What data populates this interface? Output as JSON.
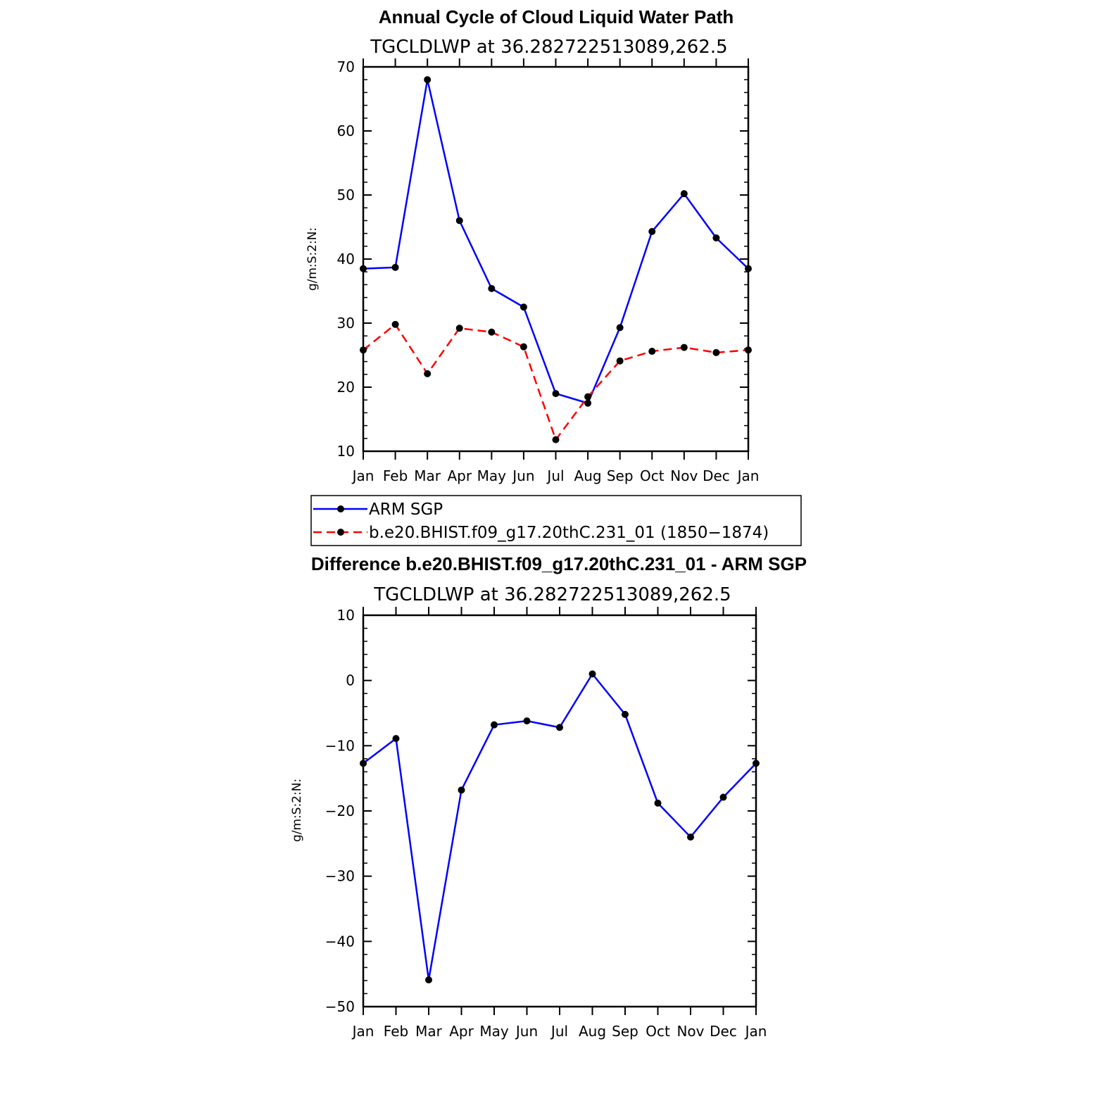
{
  "chart_data": [
    {
      "type": "line",
      "title": "Annual Cycle of Cloud Liquid Water Path",
      "subtitle": "TGCLDLWP  at  36.282722513089,262.5",
      "ylabel": "g/m:S:2:N:",
      "xlabel": "",
      "ylim": [
        10,
        70
      ],
      "yticks": [
        10,
        20,
        30,
        40,
        50,
        60,
        70
      ],
      "categories": [
        "Jan",
        "Feb",
        "Mar",
        "Apr",
        "May",
        "Jun",
        "Jul",
        "Aug",
        "Sep",
        "Oct",
        "Nov",
        "Dec",
        "Jan"
      ],
      "series": [
        {
          "name": "ARM  SGP",
          "color": "#0000ff",
          "dash": "solid",
          "values": [
            38.5,
            38.7,
            68.0,
            46.0,
            35.4,
            32.5,
            19.0,
            17.5,
            29.3,
            44.3,
            50.2,
            43.3,
            38.5
          ]
        },
        {
          "name": "b.e20.BHIST.f09_g17.20thC.231_01  (1850−1874)",
          "color": "#ff0000",
          "dash": "dashed",
          "values": [
            25.8,
            29.8,
            22.1,
            29.2,
            28.6,
            26.3,
            11.8,
            18.5,
            24.1,
            25.6,
            26.2,
            25.4,
            25.8
          ]
        }
      ],
      "legend": "below"
    },
    {
      "type": "line",
      "title": "Difference b.e20.BHIST.f09_g17.20thC.231_01 - ARM SGP",
      "subtitle": "TGCLDLWP  at  36.282722513089,262.5",
      "ylabel": "g/m:S:2:N:",
      "xlabel": "",
      "ylim": [
        -50,
        10
      ],
      "yticks": [
        -50,
        -40,
        -30,
        -20,
        -10,
        0,
        10
      ],
      "ytick_labels": [
        "−50",
        "−40",
        "−30",
        "−20",
        "−10",
        "0",
        "10"
      ],
      "categories": [
        "Jan",
        "Feb",
        "Mar",
        "Apr",
        "May",
        "Jun",
        "Jul",
        "Aug",
        "Sep",
        "Oct",
        "Nov",
        "Dec",
        "Jan"
      ],
      "series": [
        {
          "color": "#0000ff",
          "dash": "solid",
          "values": [
            -12.7,
            -8.9,
            -45.9,
            -16.8,
            -6.8,
            -6.2,
            -7.2,
            1.0,
            -5.2,
            -18.8,
            -24.0,
            -17.9,
            -12.7
          ]
        }
      ]
    }
  ]
}
